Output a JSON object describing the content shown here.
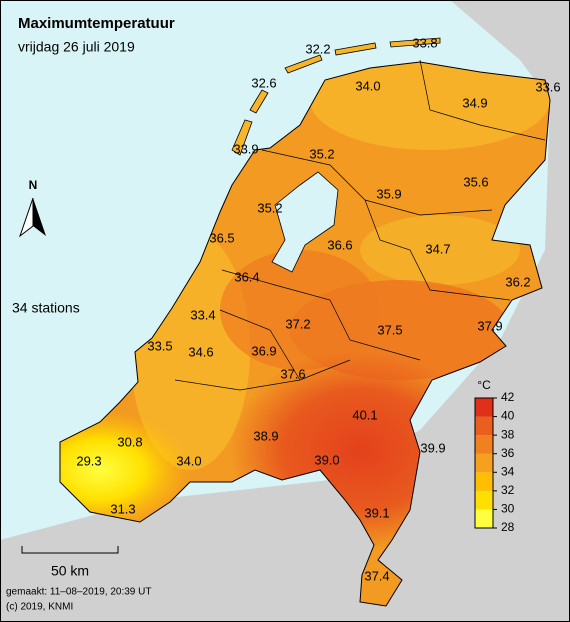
{
  "header": {
    "title": "Maximumtemperatuur",
    "subtitle": "vrijdag 26 juli 2019"
  },
  "north": "N",
  "stations_count": "34 stations",
  "stations": [
    "32.2",
    "33.8",
    "32.6",
    "34.0",
    "33.6",
    "34.9",
    "33.9",
    "35.2",
    "35.9",
    "35.6",
    "35.2",
    "36.5",
    "36.6",
    "34.7",
    "36.4",
    "36.2",
    "33.4",
    "37.2",
    "37.5",
    "37.9",
    "33.5",
    "34.6",
    "36.9",
    "37.6",
    "40.1",
    "30.8",
    "38.9",
    "39.9",
    "29.3",
    "34.0",
    "39.0",
    "31.3",
    "39.1",
    "37.4"
  ],
  "legend": {
    "unit": "°C",
    "ticks": [
      28,
      30,
      32,
      34,
      36,
      38,
      40,
      42
    ]
  },
  "scale_bar": "50 km",
  "footer": {
    "made": "gemaakt: 11–08–2019, 20:39 UT",
    "copyright": "(c) 2019, KNMI"
  }
}
